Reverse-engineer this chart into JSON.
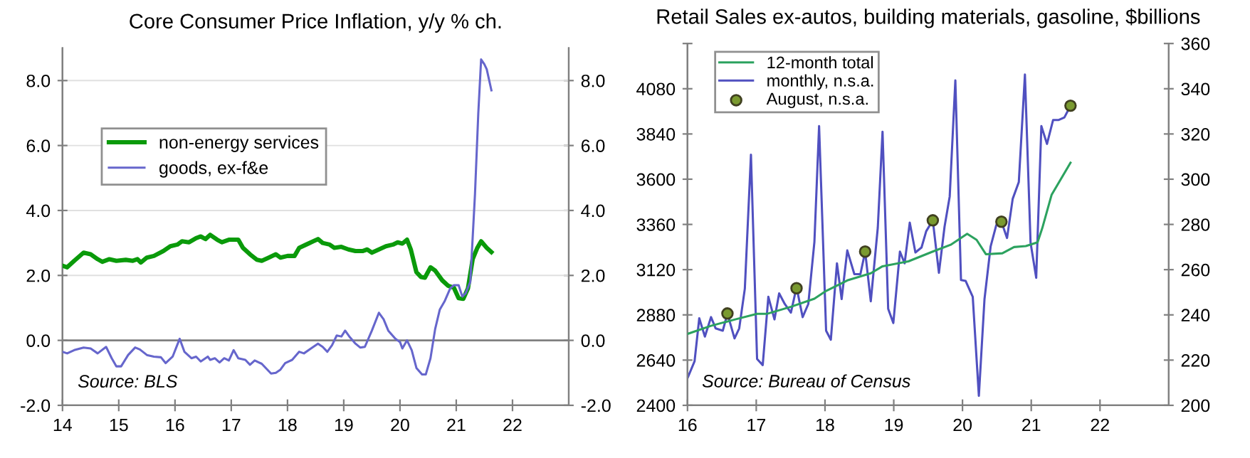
{
  "chart_data": [
    {
      "type": "line",
      "title": "Core Consumer Price Inflation, y/y % ch.",
      "xlim": [
        2014,
        2023
      ],
      "ylim": [
        -2,
        9
      ],
      "yticks": [
        {
          "value": -2,
          "label": "-2.0"
        },
        {
          "value": 0,
          "label": "0.0"
        },
        {
          "value": 2,
          "label": "2.0"
        },
        {
          "value": 4,
          "label": "4.0"
        },
        {
          "value": 6,
          "label": "6.0"
        },
        {
          "value": 8,
          "label": "8.0"
        }
      ],
      "y2lim": [
        -2,
        9
      ],
      "y2ticks": [
        {
          "value": -2,
          "label": "-2.0"
        },
        {
          "value": 0,
          "label": "0.0"
        },
        {
          "value": 2,
          "label": "2.0"
        },
        {
          "value": 4,
          "label": "4.0"
        },
        {
          "value": 6,
          "label": "6.0"
        },
        {
          "value": 8,
          "label": "8.0"
        }
      ],
      "xticks": [
        {
          "value": 2014,
          "label": "14"
        },
        {
          "value": 2015,
          "label": "15"
        },
        {
          "value": 2016,
          "label": "16"
        },
        {
          "value": 2017,
          "label": "17"
        },
        {
          "value": 2018,
          "label": "18"
        },
        {
          "value": 2019,
          "label": "19"
        },
        {
          "value": 2020,
          "label": "20"
        },
        {
          "value": 2021,
          "label": "21"
        },
        {
          "value": 2022,
          "label": "22"
        }
      ],
      "grid": "y",
      "legend": "top left",
      "annotations": [
        "Source: BLS"
      ],
      "ref_lines": [
        {
          "axis": "y",
          "value": 0,
          "color": "#808080"
        }
      ],
      "series": [
        {
          "name": "non-energy services",
          "color": "#0a9a0a",
          "x": [
            2014.0,
            2014.083,
            2014.208,
            2014.375,
            2014.5,
            2014.625,
            2014.708,
            2014.833,
            2014.958,
            2015.125,
            2015.25,
            2015.333,
            2015.392,
            2015.5,
            2015.625,
            2015.792,
            2015.917,
            2016.042,
            2016.125,
            2016.25,
            2016.375,
            2016.458,
            2016.542,
            2016.625,
            2016.75,
            2016.833,
            2016.958,
            2017.125,
            2017.208,
            2017.333,
            2017.458,
            2017.542,
            2017.667,
            2017.792,
            2017.875,
            2018.0,
            2018.125,
            2018.208,
            2018.333,
            2018.458,
            2018.542,
            2018.625,
            2018.75,
            2018.833,
            2018.958,
            2019.083,
            2019.208,
            2019.333,
            2019.417,
            2019.5,
            2019.625,
            2019.75,
            2019.875,
            2019.958,
            2020.042,
            2020.125,
            2020.192,
            2020.292,
            2020.375,
            2020.442,
            2020.542,
            2020.625,
            2020.75,
            2020.858,
            2020.958,
            2021.042,
            2021.125,
            2021.208,
            2021.292,
            2021.375,
            2021.442,
            2021.542,
            2021.625
          ],
          "values": [
            2.3,
            2.25,
            2.45,
            2.7,
            2.65,
            2.5,
            2.42,
            2.5,
            2.45,
            2.48,
            2.45,
            2.5,
            2.4,
            2.55,
            2.6,
            2.75,
            2.9,
            2.95,
            3.05,
            3.02,
            3.15,
            3.2,
            3.12,
            3.25,
            3.1,
            3.02,
            3.1,
            3.1,
            2.85,
            2.65,
            2.48,
            2.45,
            2.55,
            2.65,
            2.55,
            2.6,
            2.6,
            2.85,
            2.95,
            3.05,
            3.12,
            3.0,
            2.95,
            2.85,
            2.88,
            2.8,
            2.75,
            2.75,
            2.8,
            2.7,
            2.8,
            2.9,
            2.95,
            3.02,
            2.98,
            3.1,
            2.8,
            2.1,
            1.95,
            1.93,
            2.25,
            2.15,
            1.85,
            1.68,
            1.62,
            1.3,
            1.28,
            1.6,
            2.5,
            2.85,
            3.05,
            2.85,
            2.72
          ]
        },
        {
          "name": "goods, ex-f&e",
          "color": "#6666cc",
          "x": [
            2014.0,
            2014.083,
            2014.208,
            2014.375,
            2014.5,
            2014.625,
            2014.775,
            2014.875,
            2014.958,
            2015.042,
            2015.167,
            2015.292,
            2015.375,
            2015.5,
            2015.625,
            2015.75,
            2015.833,
            2015.958,
            2016.083,
            2016.167,
            2016.292,
            2016.375,
            2016.458,
            2016.583,
            2016.625,
            2016.708,
            2016.792,
            2016.875,
            2016.958,
            2017.042,
            2017.125,
            2017.25,
            2017.333,
            2017.417,
            2017.542,
            2017.708,
            2017.792,
            2017.875,
            2017.958,
            2018.083,
            2018.208,
            2018.292,
            2018.417,
            2018.542,
            2018.625,
            2018.708,
            2018.792,
            2018.875,
            2018.958,
            2019.025,
            2019.108,
            2019.208,
            2019.292,
            2019.375,
            2019.5,
            2019.625,
            2019.708,
            2019.792,
            2019.917,
            2020.0,
            2020.042,
            2020.125,
            2020.208,
            2020.292,
            2020.392,
            2020.458,
            2020.542,
            2020.625,
            2020.708,
            2020.792,
            2020.892,
            2020.958,
            2021.042,
            2021.108,
            2021.167,
            2021.25,
            2021.333,
            2021.392,
            2021.442,
            2021.5,
            2021.542,
            2021.625
          ],
          "values": [
            -0.35,
            -0.4,
            -0.3,
            -0.22,
            -0.25,
            -0.4,
            -0.2,
            -0.55,
            -0.8,
            -0.8,
            -0.45,
            -0.22,
            -0.28,
            -0.45,
            -0.5,
            -0.52,
            -0.7,
            -0.5,
            0.05,
            -0.35,
            -0.55,
            -0.5,
            -0.65,
            -0.5,
            -0.6,
            -0.55,
            -0.68,
            -0.55,
            -0.62,
            -0.3,
            -0.55,
            -0.6,
            -0.75,
            -0.62,
            -0.72,
            -1.02,
            -1.0,
            -0.9,
            -0.7,
            -0.6,
            -0.35,
            -0.4,
            -0.25,
            -0.1,
            -0.2,
            -0.35,
            -0.15,
            0.15,
            0.12,
            0.3,
            0.1,
            -0.1,
            -0.22,
            -0.2,
            0.3,
            0.85,
            0.65,
            0.3,
            0.05,
            -0.05,
            -0.25,
            0.0,
            -0.3,
            -0.85,
            -1.05,
            -1.05,
            -0.55,
            0.35,
            0.95,
            1.2,
            1.6,
            1.7,
            1.7,
            1.35,
            1.45,
            1.8,
            4.5,
            7.0,
            8.65,
            8.5,
            8.35,
            7.7
          ]
        }
      ]
    },
    {
      "type": "line",
      "title": "Retail Sales ex-autos, building materials, gasoline, $billions",
      "xlim": [
        2016,
        2023
      ],
      "ylim": [
        2400,
        4320
      ],
      "yticks": [
        2400,
        2640,
        2880,
        3120,
        3360,
        3600,
        3840,
        4080,
        {
          "value": 4320,
          "label": null
        }
      ],
      "y2lim": [
        200,
        360
      ],
      "y2ticks": [
        200,
        220,
        240,
        260,
        280,
        300,
        320,
        340,
        360
      ],
      "xticks": [
        {
          "value": 2016,
          "label": "16"
        },
        {
          "value": 2017,
          "label": "17"
        },
        {
          "value": 2018,
          "label": "18"
        },
        {
          "value": 2019,
          "label": "19"
        },
        {
          "value": 2020,
          "label": "20"
        },
        {
          "value": 2021,
          "label": "21"
        },
        {
          "value": 2022,
          "label": "22"
        }
      ],
      "legend": "top left",
      "annotations": [
        "Source: Bureau of Census"
      ],
      "series": [
        {
          "name": "12-month total",
          "color": "#2ca25f",
          "x": [
            2016.0,
            2016.342,
            2016.684,
            2017.012,
            2017.162,
            2017.504,
            2017.846,
            2018.016,
            2018.324,
            2018.666,
            2018.837,
            2019.213,
            2019.554,
            2019.828,
            2020.068,
            2020.205,
            2020.34,
            2020.58,
            2020.75,
            2020.921,
            2021.092,
            2021.161,
            2021.297,
            2021.571
          ],
          "values": [
            2779,
            2822,
            2855,
            2886,
            2886,
            2923,
            2966,
            3007,
            3063,
            3101,
            3138,
            3164,
            3214,
            3252,
            3310,
            3278,
            3202,
            3207,
            3240,
            3245,
            3265,
            3341,
            3518,
            3687
          ]
        },
        {
          "name": "monthly, n.s.a.",
          "color": "#5050c0",
          "axis": "y2",
          "x": [
            2016.0,
            2016.103,
            2016.171,
            2016.253,
            2016.342,
            2016.41,
            2016.513,
            2016.581,
            2016.684,
            2016.752,
            2016.834,
            2016.923,
            2017.012,
            2017.094,
            2017.176,
            2017.265,
            2017.333,
            2017.415,
            2017.504,
            2017.586,
            2017.675,
            2017.757,
            2017.846,
            2017.914,
            2018.016,
            2018.085,
            2018.174,
            2018.242,
            2018.324,
            2018.427,
            2018.515,
            2018.584,
            2018.666,
            2018.768,
            2018.837,
            2018.919,
            2018.994,
            2019.09,
            2019.158,
            2019.233,
            2019.315,
            2019.404,
            2019.472,
            2019.568,
            2019.657,
            2019.739,
            2019.814,
            2019.896,
            2019.978,
            2020.046,
            2020.149,
            2020.238,
            2020.32,
            2020.409,
            2020.491,
            2020.566,
            2020.648,
            2020.73,
            2020.819,
            2020.908,
            2020.99,
            2021.072,
            2021.147,
            2021.229,
            2021.318,
            2021.4,
            2021.482,
            2021.571
          ],
          "values": [
            212,
            219.5,
            238.5,
            230.4,
            239,
            234,
            233,
            240.6,
            229.6,
            234,
            251.6,
            310.8,
            220.5,
            217.8,
            248,
            238,
            249.5,
            244.8,
            241,
            252.2,
            239,
            244.8,
            272.3,
            323.5,
            233,
            229,
            262.8,
            247,
            268.5,
            258,
            258,
            268,
            246,
            278.6,
            321,
            242.7,
            236.4,
            268,
            262.8,
            280.8,
            267.6,
            269.8,
            277,
            281.8,
            258.6,
            279,
            292.4,
            343.7,
            255.4,
            255,
            248,
            204.2,
            247,
            270.2,
            279.7,
            281.2,
            274,
            291.3,
            298.7,
            346.3,
            271.9,
            256.4,
            323.5,
            315.6,
            326.2,
            326.2,
            327.3,
            332.5
          ]
        },
        {
          "name": "August, n.s.a.",
          "type": "scatter",
          "color": "#7a9a30",
          "axis": "y2",
          "marker": "circle",
          "x": [
            2016.581,
            2017.586,
            2018.584,
            2019.568,
            2020.566,
            2021.571
          ],
          "values": [
            240.6,
            251.8,
            268,
            281.8,
            281.2,
            332.5
          ]
        }
      ]
    }
  ]
}
